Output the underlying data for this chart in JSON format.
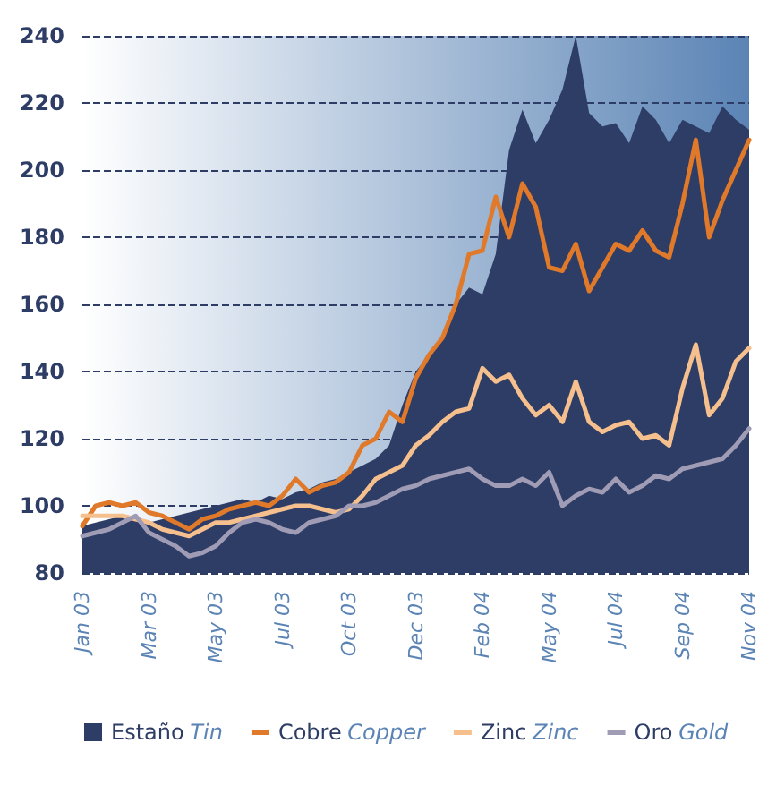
{
  "chart_data": {
    "type": "line",
    "categories": [
      "Jan 03",
      null,
      null,
      null,
      null,
      "Mar 03",
      null,
      null,
      null,
      null,
      "May 03",
      null,
      null,
      null,
      null,
      "Jul 03",
      null,
      null,
      null,
      null,
      "Oct 03",
      null,
      null,
      null,
      null,
      "Dec 03",
      null,
      null,
      null,
      null,
      "Feb 04",
      null,
      null,
      null,
      null,
      "May 04",
      null,
      null,
      null,
      null,
      "Jul 04",
      null,
      null,
      null,
      null,
      "Sep 04",
      null,
      null,
      null,
      null,
      "Nov 04"
    ],
    "series": [
      {
        "name": "Estaño Tin",
        "type": "area",
        "color": "#2e3d66",
        "values": [
          94,
          95,
          96,
          97,
          96,
          95,
          96,
          97,
          98,
          99,
          100,
          101,
          102,
          101,
          103,
          102,
          104,
          105,
          107,
          108,
          110,
          112,
          114,
          118,
          130,
          140,
          145,
          150,
          160,
          165,
          163,
          175,
          206,
          218,
          208,
          215,
          224,
          240,
          217,
          213,
          214,
          208,
          219,
          215,
          208,
          215,
          213,
          211,
          219,
          215,
          212
        ]
      },
      {
        "name": "Cobre Copper",
        "color": "#e07a2a",
        "values": [
          94,
          100,
          101,
          100,
          101,
          98,
          97,
          95,
          93,
          96,
          97,
          99,
          100,
          101,
          100,
          103,
          108,
          104,
          106,
          107,
          110,
          118,
          120,
          128,
          125,
          138,
          145,
          150,
          160,
          175,
          176,
          192,
          180,
          196,
          189,
          171,
          170,
          178,
          164,
          171,
          178,
          176,
          182,
          176,
          174,
          190,
          209,
          180,
          191,
          200,
          209
        ]
      },
      {
        "name": "Zinc Zinc",
        "color": "#f5c08e",
        "values": [
          97,
          97,
          97,
          97,
          96,
          95,
          93,
          92,
          91,
          93,
          95,
          95,
          96,
          97,
          98,
          99,
          100,
          100,
          99,
          98,
          99,
          103,
          108,
          110,
          112,
          118,
          121,
          125,
          128,
          129,
          141,
          137,
          139,
          132,
          127,
          130,
          125,
          137,
          125,
          122,
          124,
          125,
          120,
          121,
          118,
          135,
          148,
          127,
          132,
          143,
          147
        ]
      },
      {
        "name": "Oro Gold",
        "color": "#a09cb5",
        "values": [
          91,
          92,
          93,
          95,
          97,
          92,
          90,
          88,
          85,
          86,
          88,
          92,
          95,
          96,
          95,
          93,
          92,
          95,
          96,
          97,
          100,
          100,
          101,
          103,
          105,
          106,
          108,
          109,
          110,
          111,
          108,
          106,
          106,
          108,
          106,
          110,
          100,
          103,
          105,
          104,
          108,
          104,
          106,
          109,
          108,
          111,
          112,
          113,
          114,
          118,
          123
        ]
      }
    ],
    "ylim": [
      80,
      240
    ],
    "yticks": [
      80,
      100,
      120,
      140,
      160,
      180,
      200,
      220,
      240
    ],
    "grid": "y",
    "legend": "bottom left",
    "marker": "none",
    "line_style": "solid"
  }
}
